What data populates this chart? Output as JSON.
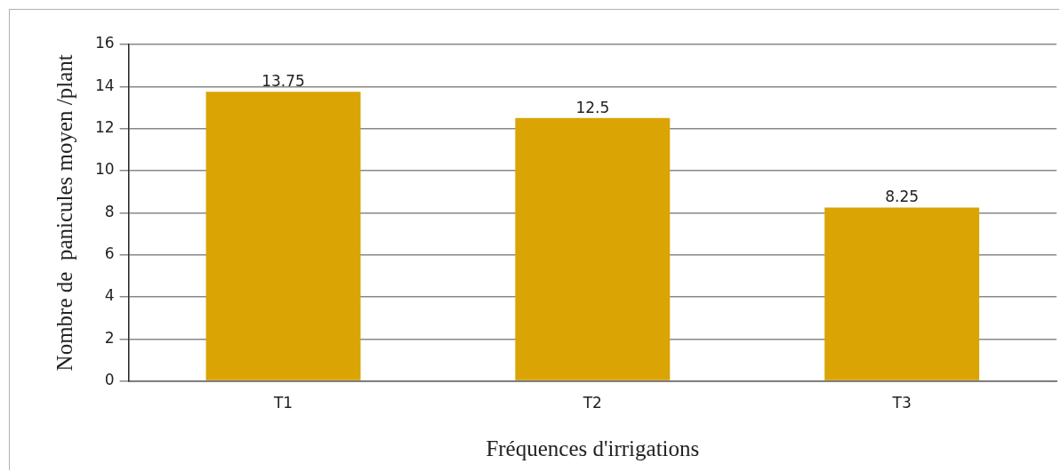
{
  "chart_data": {
    "type": "bar",
    "xlabel": "Fréquences d'irrigations",
    "ylabel": "Nombre de  panicules moyen /plant",
    "categories": [
      "T1",
      "T2",
      "T3"
    ],
    "values": [
      13.75,
      12.5,
      8.25
    ],
    "color": "#d9a404",
    "ylim": [
      0,
      16
    ],
    "yticks": [
      0,
      2,
      4,
      6,
      8,
      10,
      12,
      14,
      16
    ],
    "grid": "y",
    "legend": false,
    "data_labels": true
  }
}
